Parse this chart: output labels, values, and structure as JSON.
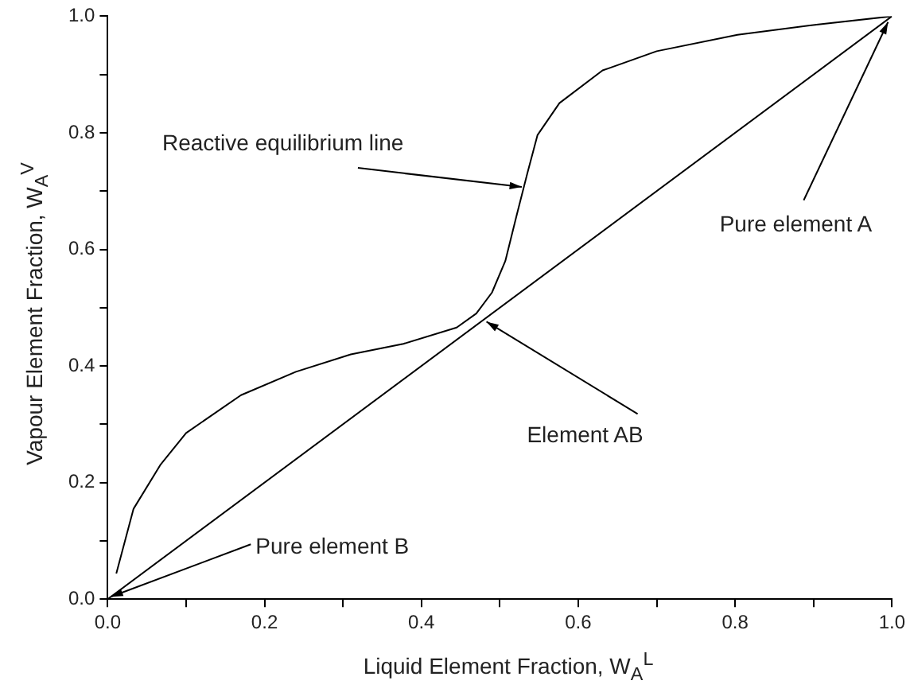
{
  "chart_data": {
    "type": "line",
    "xlabel": "Liquid Element Fraction, W$_{A}$$^{L}$",
    "ylabel": "Vapour Element Fraction, W$_{A}$$^{V}$",
    "xlim": [
      0,
      1
    ],
    "ylim": [
      0,
      1
    ],
    "xticks": [
      {
        "value": 0,
        "label": "0.0"
      },
      {
        "value": 0.1,
        "label": null
      },
      {
        "value": 0.2,
        "label": "0.2"
      },
      {
        "value": 0.3,
        "label": null
      },
      {
        "value": 0.4,
        "label": "0.4"
      },
      {
        "value": 0.5,
        "label": null
      },
      {
        "value": 0.6,
        "label": "0.6"
      },
      {
        "value": 0.7,
        "label": null
      },
      {
        "value": 0.8,
        "label": "0.8"
      },
      {
        "value": 0.9,
        "label": null
      },
      {
        "value": 1,
        "label": "1.0"
      }
    ],
    "yticks": [
      {
        "value": 0,
        "label": "0.0"
      },
      {
        "value": 0.1,
        "label": null
      },
      {
        "value": 0.2,
        "label": "0.2"
      },
      {
        "value": 0.3,
        "label": null
      },
      {
        "value": 0.4,
        "label": "0.4"
      },
      {
        "value": 0.5,
        "label": null
      },
      {
        "value": 0.6,
        "label": "0.6"
      },
      {
        "value": 0.7,
        "label": null
      },
      {
        "value": 0.8,
        "label": "0.8"
      },
      {
        "value": 0.9,
        "label": null
      },
      {
        "value": 1,
        "label": "1.0"
      }
    ],
    "series": [
      {
        "color": "#000000",
        "x": [
          0.011,
          0.033,
          0.067,
          0.1,
          0.17,
          0.24,
          0.31,
          0.377,
          0.445,
          0.47,
          0.49,
          0.507,
          0.521,
          0.535,
          0.548,
          0.576,
          0.631,
          0.7,
          0.803,
          0.906,
          1.0
        ],
        "values": [
          0.044,
          0.155,
          0.23,
          0.285,
          0.35,
          0.39,
          0.42,
          0.438,
          0.466,
          0.49,
          0.526,
          0.58,
          0.656,
          0.73,
          0.796,
          0.851,
          0.907,
          0.94,
          0.968,
          0.986,
          1.0
        ]
      },
      {
        "color": "#000000",
        "x": [
          0,
          1
        ],
        "values": [
          0,
          1
        ]
      }
    ],
    "annotations": [
      {
        "text": "Reactive equilibrium line",
        "x": 0.528,
        "y": 0.707
      },
      {
        "text": "Pure element A",
        "x": 0.995,
        "y": 0.99
      },
      {
        "text": "Element AB",
        "x": 0.483,
        "y": 0.476
      },
      {
        "text": "Pure element B",
        "x": 0.004,
        "y": 0.004
      }
    ],
    "legend": false,
    "grid": false,
    "marker": "none",
    "line_style": "solid"
  }
}
